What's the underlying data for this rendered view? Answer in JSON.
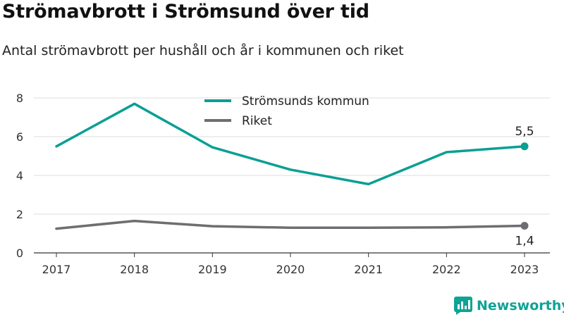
{
  "title": "Strömavbrott i Strömsund över tid",
  "subtitle": "Antal strömavbrott per hushåll och år i kommunen och riket",
  "brand": "Newsworthy",
  "colors": {
    "kommun": "#0a9f94",
    "riket": "#6e6e72",
    "grid": "#dcdcdc"
  },
  "chart_data": {
    "type": "line",
    "x": [
      "2017",
      "2018",
      "2019",
      "2020",
      "2021",
      "2022",
      "2023"
    ],
    "yticks": [
      0,
      2,
      4,
      6,
      8
    ],
    "ylim": [
      0,
      8
    ],
    "grid": true,
    "legend_position": "top-center",
    "series": [
      {
        "name": "Strömsunds kommun",
        "color": "#0a9f94",
        "values": [
          5.5,
          7.7,
          5.45,
          4.3,
          3.55,
          5.2,
          5.5
        ],
        "end_label": "5,5"
      },
      {
        "name": "Riket",
        "color": "#6e6e72",
        "values": [
          1.25,
          1.65,
          1.38,
          1.3,
          1.3,
          1.32,
          1.4
        ],
        "end_label": "1,4"
      }
    ]
  }
}
